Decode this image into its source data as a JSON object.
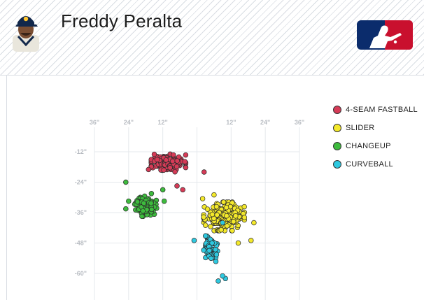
{
  "header": {
    "player_name": "Freddy Peralta"
  },
  "colors": {
    "fastball": "#d63b57",
    "slider": "#f4e92b",
    "changeup": "#3dbb3d",
    "curveball": "#2ec9e0",
    "grid": "#e5e8ec",
    "tick": "#b8bcc2",
    "mlb_blue": "#0b2c6c",
    "mlb_red": "#c9102e"
  },
  "chart_data": {
    "type": "scatter",
    "x_ticks": [
      "36\"",
      "24\"",
      "12\"",
      "12\"",
      "24\"",
      "36\""
    ],
    "y_ticks": [
      "-12\"",
      "-24\"",
      "-36\"",
      "-48\"",
      "-60\""
    ],
    "xlim": [
      -36,
      36
    ],
    "ylim": [
      -66,
      -6
    ],
    "grid": true,
    "legend_position": "right",
    "series": [
      {
        "name": "4-SEAM FASTBALL",
        "color_key": "fastball",
        "cx": -10,
        "cy": -16.5,
        "sx": 4.4,
        "sy": 2.6,
        "n": 170,
        "seed": 11,
        "outliers": [
          [
            -15,
            -13
          ],
          [
            -5,
            -27
          ],
          [
            -7,
            -25.5
          ],
          [
            2.5,
            -20
          ],
          [
            -17,
            -19
          ]
        ]
      },
      {
        "name": "SLIDER",
        "color_key": "slider",
        "cx": 9.5,
        "cy": -37.5,
        "sx": 5.2,
        "sy": 4.1,
        "n": 210,
        "seed": 23,
        "outliers": [
          [
            2,
            -30.5
          ],
          [
            6,
            -29
          ],
          [
            20,
            -40
          ],
          [
            14.5,
            -48
          ],
          [
            3,
            -41
          ],
          [
            19,
            -47
          ]
        ]
      },
      {
        "name": "CHANGEUP",
        "color_key": "changeup",
        "cx": -18,
        "cy": -33.5,
        "sx": 2.8,
        "sy": 2.9,
        "n": 110,
        "seed": 37,
        "outliers": [
          [
            -25,
            -24
          ],
          [
            -25,
            -34.5
          ],
          [
            -24,
            -31.5
          ],
          [
            -12,
            -27
          ],
          [
            -16,
            -28.5
          ],
          [
            -11.5,
            -31.5
          ]
        ]
      },
      {
        "name": "CURVEBALL",
        "color_key": "curveball",
        "cx": 4.5,
        "cy": -50,
        "sx": 2.2,
        "sy": 4.1,
        "n": 70,
        "seed": 51,
        "outliers": [
          [
            -1,
            -47
          ],
          [
            10,
            -62
          ],
          [
            7.5,
            -63
          ],
          [
            9,
            -61
          ],
          [
            9,
            -40
          ]
        ]
      }
    ]
  }
}
